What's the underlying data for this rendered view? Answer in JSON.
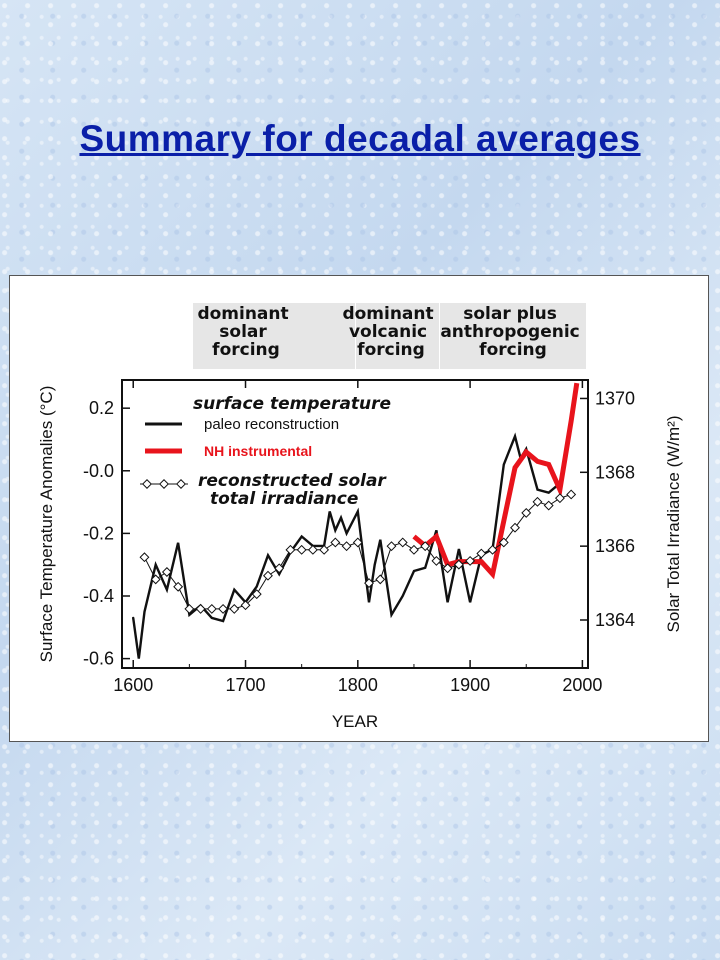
{
  "slide": {
    "title": "Summary for decadal averages"
  },
  "chart_data": {
    "type": "line",
    "forcing_bands": [
      {
        "label_lines": [
          "dominant",
          "solar",
          "forcing"
        ]
      },
      {
        "label_lines": [
          "dominant",
          "volcanic",
          "forcing"
        ]
      },
      {
        "label_lines": [
          "solar plus",
          "anthropogenic",
          "forcing"
        ]
      }
    ],
    "xlabel": "YEAR",
    "ylabel_left": "Surface Temperature Anomalies (°C)",
    "ylabel_right": "Solar Total Irradiance (W/m²)",
    "xlim": [
      1590,
      2005
    ],
    "ylim_left": [
      -0.63,
      0.29
    ],
    "ylim_right": [
      1362.7,
      1370.5
    ],
    "x_ticks": [
      "1600",
      "1700",
      "1800",
      "1900",
      "2000"
    ],
    "x_tick_values": [
      1600,
      1700,
      1800,
      1900,
      2000
    ],
    "y_left_ticks": [
      "0.2",
      "-0.0",
      "-0.2",
      "-0.4",
      "-0.6"
    ],
    "y_left_tick_values": [
      0.2,
      0.0,
      -0.2,
      -0.4,
      -0.6
    ],
    "y_right_ticks": [
      "1370",
      "1368",
      "1366",
      "1364"
    ],
    "y_right_tick_values": [
      1370,
      1368,
      1366,
      1364
    ],
    "legend": {
      "header_temp": "surface temperature",
      "paleo": "paleo reconstruction",
      "nh": "NH instrumental",
      "solar_line1": "reconstructed solar",
      "solar_line2": "total irradiance"
    },
    "series": [
      {
        "name": "paleo reconstruction",
        "axis": "left",
        "color": "#111111",
        "x": [
          1600,
          1605,
          1610,
          1620,
          1630,
          1640,
          1650,
          1660,
          1670,
          1680,
          1690,
          1700,
          1710,
          1720,
          1730,
          1740,
          1750,
          1760,
          1770,
          1775,
          1780,
          1785,
          1790,
          1800,
          1810,
          1815,
          1820,
          1830,
          1840,
          1850,
          1860,
          1870,
          1880,
          1890,
          1900,
          1910,
          1920,
          1930,
          1940,
          1945,
          1950,
          1960,
          1970,
          1980
        ],
        "y": [
          -0.47,
          -0.6,
          -0.45,
          -0.3,
          -0.38,
          -0.23,
          -0.46,
          -0.43,
          -0.47,
          -0.48,
          -0.38,
          -0.42,
          -0.37,
          -0.27,
          -0.33,
          -0.26,
          -0.21,
          -0.24,
          -0.24,
          -0.13,
          -0.19,
          -0.15,
          -0.2,
          -0.13,
          -0.42,
          -0.3,
          -0.22,
          -0.46,
          -0.4,
          -0.32,
          -0.31,
          -0.19,
          -0.42,
          -0.25,
          -0.42,
          -0.27,
          -0.25,
          0.02,
          0.11,
          0.04,
          0.07,
          -0.06,
          -0.07,
          -0.04
        ]
      },
      {
        "name": "NH instrumental",
        "axis": "left",
        "color": "#e8141c",
        "x": [
          1850,
          1860,
          1870,
          1880,
          1890,
          1900,
          1910,
          1920,
          1930,
          1940,
          1950,
          1960,
          1970,
          1980,
          1990,
          1995
        ],
        "y": [
          -0.21,
          -0.24,
          -0.21,
          -0.3,
          -0.29,
          -0.29,
          -0.29,
          -0.33,
          -0.16,
          0.01,
          0.06,
          0.03,
          0.02,
          -0.06,
          0.16,
          0.28
        ]
      },
      {
        "name": "reconstructed solar total irradiance",
        "axis": "right",
        "color": "#111111",
        "x": [
          1610,
          1620,
          1630,
          1640,
          1650,
          1660,
          1670,
          1680,
          1690,
          1700,
          1710,
          1720,
          1730,
          1740,
          1750,
          1760,
          1770,
          1780,
          1790,
          1800,
          1810,
          1820,
          1830,
          1840,
          1850,
          1860,
          1870,
          1880,
          1890,
          1900,
          1910,
          1920,
          1930,
          1940,
          1950,
          1960,
          1970,
          1980,
          1990
        ],
        "y": [
          1365.7,
          1365.1,
          1365.3,
          1364.9,
          1364.3,
          1364.3,
          1364.3,
          1364.3,
          1364.3,
          1364.4,
          1364.7,
          1365.2,
          1365.4,
          1365.9,
          1365.9,
          1365.9,
          1365.9,
          1366.1,
          1366.0,
          1366.1,
          1365.0,
          1365.1,
          1366.0,
          1366.1,
          1365.9,
          1366.0,
          1365.6,
          1365.4,
          1365.5,
          1365.6,
          1365.8,
          1365.9,
          1366.1,
          1366.5,
          1366.9,
          1367.2,
          1367.1,
          1367.3,
          1367.4
        ]
      }
    ]
  }
}
